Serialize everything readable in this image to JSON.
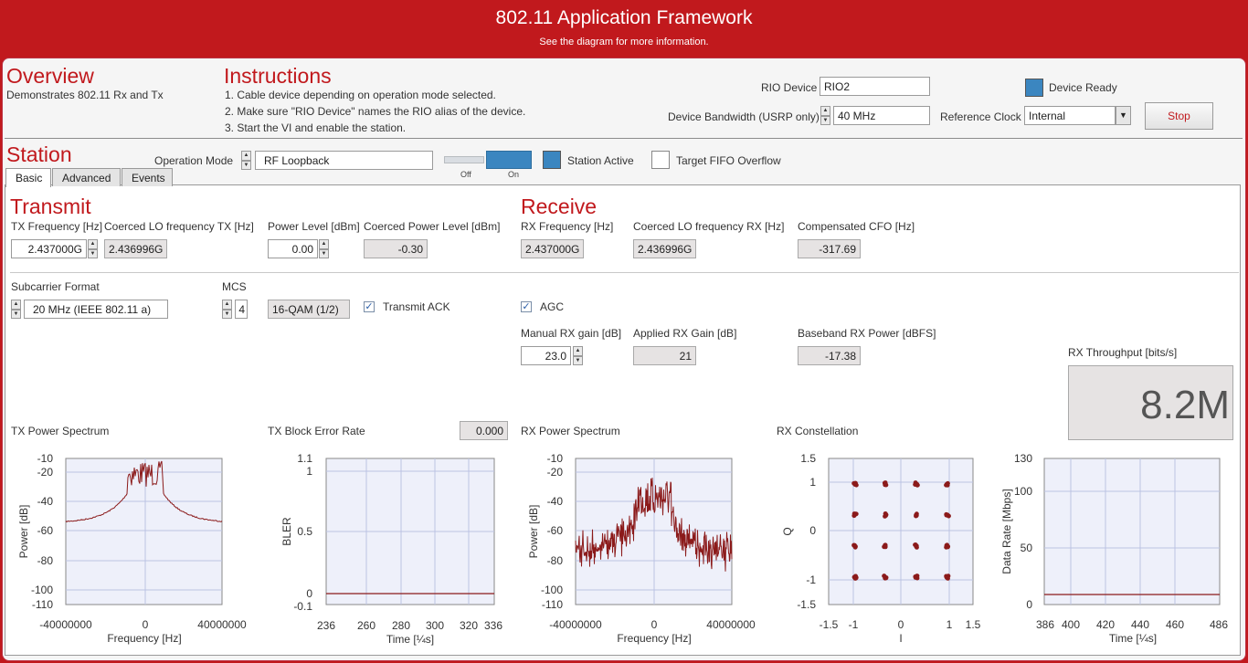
{
  "header": {
    "title": "802.11 Application Framework",
    "subtitle": "See the diagram for more information."
  },
  "overview": {
    "title": "Overview",
    "text": "Demonstrates 802.11 Rx and Tx"
  },
  "instructions": {
    "title": "Instructions",
    "lines": [
      "1. Cable device depending on operation mode selected.",
      "2. Make sure \"RIO Device\" names the RIO alias of the device.",
      "3. Start the VI and enable the station."
    ]
  },
  "device": {
    "rio_label": "RIO Device",
    "rio_value": "RIO2",
    "bw_label": "Device Bandwidth (USRP only)",
    "bw_value": "40 MHz",
    "ready_label": "Device Ready",
    "refclk_label": "Reference Clock",
    "refclk_value": "Internal",
    "stop_label": "Stop"
  },
  "station": {
    "title": "Station",
    "opmode_label": "Operation Mode",
    "opmode_value": "RF Loopback",
    "toggle_off": "Off",
    "toggle_on": "On",
    "active_label": "Station Active",
    "fifo_label": "Target FIFO Overflow"
  },
  "tabs": [
    "Basic",
    "Advanced",
    "Events"
  ],
  "transmit": {
    "title": "Transmit",
    "txfreq_label": "TX Frequency [Hz]",
    "txfreq_value": "2.437000G",
    "coerced_lo_label": "Coerced LO frequency TX [Hz]",
    "coerced_lo_value": "2.436996G",
    "power_label": "Power Level [dBm]",
    "power_value": "0.00",
    "coerced_power_label": "Coerced Power Level [dBm]",
    "coerced_power_value": "-0.30",
    "subcarrier_label": "Subcarrier Format",
    "subcarrier_value": "20 MHz (IEEE 802.11 a)",
    "mcs_label": "MCS",
    "mcs_value": "4",
    "mcs_desc": "16-QAM (1/2)",
    "ack_label": "Transmit ACK"
  },
  "receive": {
    "title": "Receive",
    "rxfreq_label": "RX Frequency [Hz]",
    "rxfreq_value": "2.437000G",
    "coerced_lo_label": "Coerced LO frequency RX [Hz]",
    "coerced_lo_value": "2.436996G",
    "cfo_label": "Compensated CFO [Hz]",
    "cfo_value": "-317.69",
    "agc_label": "AGC",
    "manual_gain_label": "Manual RX gain [dB]",
    "manual_gain_value": "23.0",
    "applied_gain_label": "Applied RX Gain [dB]",
    "applied_gain_value": "21",
    "bb_power_label": "Baseband RX Power [dBFS]",
    "bb_power_value": "-17.38",
    "throughput_label": "RX Throughput [bits/s]",
    "throughput_value": "8.2M"
  },
  "plots": {
    "tx_spectrum": {
      "title": "TX Power Spectrum",
      "xlabel": "Frequency [Hz]",
      "ylabel": "Power [dB]",
      "xticks": [
        "-40000000",
        "0",
        "40000000"
      ],
      "yticks": [
        "-10",
        "-20",
        "-40",
        "-60",
        "-80",
        "-100",
        "-110"
      ]
    },
    "tx_bler": {
      "title": "TX Block Error Rate",
      "value": "0.000",
      "xlabel": "Time [¼s]",
      "ylabel": "BLER",
      "xticks": [
        "236",
        "260",
        "280",
        "300",
        "320",
        "336"
      ],
      "yticks": [
        "1.1",
        "1",
        "0.5",
        "0",
        "-0.1"
      ]
    },
    "rx_spectrum": {
      "title": "RX Power Spectrum",
      "xlabel": "Frequency [Hz]",
      "ylabel": "Power [dB]",
      "xticks": [
        "-40000000",
        "0",
        "40000000"
      ],
      "yticks": [
        "-10",
        "-20",
        "-40",
        "-60",
        "-80",
        "-100",
        "-110"
      ]
    },
    "rx_constellation": {
      "title": "RX Constellation",
      "xlabel": "I",
      "ylabel": "Q",
      "xticks": [
        "-1.5",
        "-1",
        "0",
        "1",
        "1.5"
      ],
      "yticks": [
        "1.5",
        "1",
        "0",
        "-1",
        "-1.5"
      ]
    },
    "rx_datarate": {
      "xlabel": "Time [¼s]",
      "ylabel": "Data Rate [Mbps]",
      "xticks": [
        "386",
        "400",
        "420",
        "440",
        "460",
        "486"
      ],
      "yticks": [
        "130",
        "100",
        "50",
        "0"
      ]
    }
  },
  "colors": {
    "brand": "#c1191d",
    "trace": "#8b1a1a",
    "led": "#3b86c0"
  }
}
